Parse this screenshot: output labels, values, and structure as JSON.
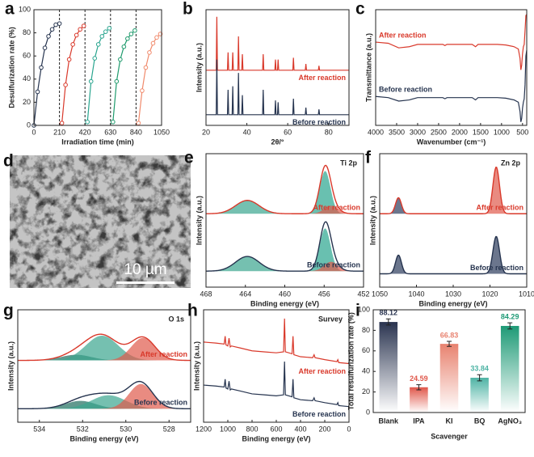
{
  "chart_data": [
    {
      "type": "line",
      "label": "a",
      "xlabel": "Irradiation time (min)",
      "ylabel": "Desulfurization rate (%)",
      "xlim": [
        0,
        1050
      ],
      "xticks": [
        0,
        210,
        420,
        630,
        840,
        1050
      ],
      "ylim": [
        0,
        100
      ],
      "yticks": [
        0,
        20,
        40,
        60,
        80,
        100
      ],
      "markers": true,
      "dividers": [
        210,
        420,
        630,
        840
      ],
      "series": [
        {
          "color": "#26344f",
          "x": [
            0,
            30,
            60,
            90,
            120,
            150,
            180,
            210
          ],
          "values": [
            0,
            29,
            50,
            67,
            77,
            83,
            87,
            88
          ]
        },
        {
          "color": "#d9392b",
          "x": [
            230,
            260,
            290,
            320,
            350,
            380,
            410
          ],
          "values": [
            2,
            35,
            57,
            70,
            78,
            83,
            86
          ]
        },
        {
          "color": "#2aa58f",
          "x": [
            440,
            470,
            500,
            530,
            560,
            590,
            620
          ],
          "values": [
            3,
            38,
            58,
            70,
            77,
            81,
            84
          ]
        },
        {
          "color": "#1e9a6c",
          "x": [
            650,
            680,
            710,
            740,
            770,
            800,
            830
          ],
          "values": [
            3,
            38,
            57,
            68,
            75,
            79,
            82
          ]
        },
        {
          "color": "#f08a6c",
          "x": [
            860,
            890,
            920,
            950,
            980,
            1010,
            1040
          ],
          "values": [
            2,
            30,
            50,
            63,
            71,
            76,
            79
          ]
        }
      ]
    },
    {
      "type": "line",
      "label": "b",
      "xlabel": "2θ/°",
      "ylabel": "Intensity (a.u.)",
      "series_label": "right-below",
      "xlim": [
        20,
        90
      ],
      "xticks": [
        20,
        40,
        60,
        80
      ],
      "ylim": [
        0,
        130
      ],
      "series": [
        {
          "name": "After reaction",
          "color": "#d9392b",
          "x": [
            20,
            25.0,
            25.3,
            25.6,
            30.5,
            30.8,
            31.1,
            32.8,
            33.1,
            33.4,
            35.6,
            35.9,
            36.2,
            37.5,
            37.8,
            38.1,
            47.7,
            48.0,
            48.3,
            53.7,
            54.0,
            54.3,
            55.0,
            55.3,
            55.6,
            62.5,
            62.8,
            63.1,
            68.6,
            68.9,
            69.2,
            75.0,
            75.3,
            75.6,
            90
          ],
          "values": [
            62,
            62,
            122,
            62,
            62,
            82,
            62,
            62,
            82,
            62,
            62,
            100,
            62,
            62,
            80,
            62,
            62,
            80,
            62,
            62,
            74,
            62,
            62,
            74,
            62,
            62,
            76,
            62,
            62,
            69,
            62,
            62,
            67,
            62,
            62
          ]
        },
        {
          "name": "Before reaction",
          "color": "#26344f",
          "x": [
            20,
            25.0,
            25.3,
            25.6,
            30.5,
            30.8,
            31.1,
            32.8,
            33.1,
            33.4,
            35.6,
            35.9,
            36.2,
            37.5,
            37.8,
            38.1,
            47.7,
            48.0,
            48.3,
            53.7,
            54.0,
            54.3,
            55.0,
            55.3,
            55.6,
            62.5,
            62.8,
            63.1,
            68.6,
            68.9,
            69.2,
            75.0,
            75.3,
            75.6,
            90
          ],
          "values": [
            12,
            12,
            74,
            12,
            12,
            40,
            12,
            12,
            44,
            12,
            12,
            59,
            12,
            12,
            34,
            12,
            12,
            40,
            12,
            12,
            28,
            12,
            12,
            26,
            12,
            12,
            30,
            12,
            12,
            20,
            12,
            12,
            18,
            12,
            12
          ]
        }
      ]
    },
    {
      "type": "line",
      "label": "c",
      "xlabel": "Wavenumber (cm⁻¹)",
      "ylabel": "Transmittance (a.u.)",
      "series_label": "left-above",
      "xlim": [
        4000,
        400
      ],
      "xticks": [
        4000,
        3500,
        3000,
        2500,
        2000,
        1500,
        1000,
        500
      ],
      "ylim": [
        0,
        100
      ],
      "series": [
        {
          "name": "After reaction",
          "color": "#d9392b",
          "x": [
            4000,
            3700,
            3450,
            3200,
            3000,
            2400,
            2350,
            2300,
            1700,
            1620,
            1560,
            1400,
            1100,
            900,
            700,
            600,
            560,
            540,
            520,
            500,
            480,
            460,
            440,
            420,
            400
          ],
          "values": [
            72,
            71,
            67,
            68,
            70,
            70,
            69,
            70,
            70,
            68,
            70,
            70,
            70,
            69.5,
            68,
            66,
            58,
            48,
            52,
            62,
            68,
            70,
            82,
            95,
            96
          ]
        },
        {
          "name": "Before reaction",
          "color": "#26344f",
          "x": [
            4000,
            3700,
            3450,
            3200,
            3000,
            2400,
            2350,
            2300,
            1700,
            1620,
            1560,
            1400,
            1100,
            900,
            700,
            600,
            560,
            540,
            520,
            500,
            480,
            460,
            440,
            420,
            400
          ],
          "values": [
            25,
            24,
            21,
            22,
            24,
            24,
            23,
            24,
            24,
            22,
            24,
            24,
            24,
            23.5,
            22,
            20,
            12,
            3,
            6,
            15,
            20,
            23,
            35,
            60,
            65
          ]
        }
      ]
    },
    {
      "type": "image",
      "label": "d",
      "scale_bar": "10 µm"
    },
    {
      "type": "xps",
      "label": "e",
      "note": "Ti 2p",
      "xlabel": "Binding energy (eV)",
      "ylabel": "Intensity (a.u.)",
      "xlim": [
        468,
        452
      ],
      "xticks": [
        468,
        464,
        460,
        456,
        452
      ],
      "ylim": [
        0,
        100
      ],
      "spectra": [
        {
          "name": "After reaction",
          "color": "#d9392b",
          "baseline": 55,
          "peaks": [
            {
              "center": 463.8,
              "height": 10,
              "width": 1.2,
              "color": "#3aa58f"
            },
            {
              "center": 455.9,
              "height": 32,
              "width": 0.55,
              "color": "#2aa58f"
            },
            {
              "center": 455.3,
              "height": 6,
              "width": 0.7,
              "color": "#e05a4b"
            }
          ]
        },
        {
          "name": "Before reaction",
          "color": "#26344f",
          "baseline": 12,
          "peaks": [
            {
              "center": 463.8,
              "height": 11,
              "width": 1.2,
              "color": "#3aa58f"
            },
            {
              "center": 455.9,
              "height": 32,
              "width": 0.55,
              "color": "#2aa58f"
            },
            {
              "center": 455.3,
              "height": 7,
              "width": 0.7,
              "color": "#e05a4b"
            }
          ]
        }
      ]
    },
    {
      "type": "xps",
      "label": "f",
      "note": "Zn 2p",
      "xlabel": "Binding energy (eV)",
      "ylabel": "Intensity (a.u.)",
      "xlim": [
        1050,
        1010
      ],
      "xticks": [
        1050,
        1040,
        1030,
        1020,
        1010
      ],
      "ylim": [
        0,
        100
      ],
      "spectra": [
        {
          "name": "After reaction",
          "color": "#d9392b",
          "baseline": 55,
          "peaks": [
            {
              "center": 1044.9,
              "height": 12,
              "width": 0.8,
              "color": "#2c3c5c"
            },
            {
              "center": 1018.3,
              "height": 35,
              "width": 0.9,
              "color": "#e05a4b"
            }
          ]
        },
        {
          "name": "Before reaction",
          "color": "#26344f",
          "baseline": 10,
          "peaks": [
            {
              "center": 1044.9,
              "height": 14,
              "width": 0.8,
              "color": "#2c3c5c"
            },
            {
              "center": 1018.3,
              "height": 28,
              "width": 0.9,
              "color": "#2c3c5c"
            }
          ]
        }
      ]
    },
    {
      "type": "xps",
      "label": "g",
      "note": "O 1s",
      "xlabel": "Binding energy (eV)",
      "ylabel": "Intensity (a.u.)",
      "xlim": [
        535,
        527
      ],
      "xticks": [
        534,
        532,
        530,
        528
      ],
      "ylim": [
        0,
        100
      ],
      "spectra": [
        {
          "name": "After reaction",
          "color": "#d9392b",
          "baseline": 55,
          "peaks": [
            {
              "center": 532.3,
              "height": 5,
              "width": 0.7,
              "color": "#1f6e5e"
            },
            {
              "center": 531.1,
              "height": 22,
              "width": 0.75,
              "color": "#3aa58f"
            },
            {
              "center": 529.2,
              "height": 20,
              "width": 0.55,
              "color": "#e05a4b"
            }
          ]
        },
        {
          "name": "Before reaction",
          "color": "#26344f",
          "baseline": 12,
          "peaks": [
            {
              "center": 532.1,
              "height": 7,
              "width": 0.7,
              "color": "#1f6e5e"
            },
            {
              "center": 530.8,
              "height": 12,
              "width": 0.8,
              "color": "#3aa58f"
            },
            {
              "center": 529.3,
              "height": 22,
              "width": 0.55,
              "color": "#e05a4b"
            }
          ]
        }
      ]
    },
    {
      "type": "line",
      "label": "h",
      "note": "Survey",
      "xlabel": "Binding energy (eV)",
      "ylabel": "Intensity (a.u.)",
      "series_label": "right-below",
      "xlim": [
        1200,
        0
      ],
      "xticks": [
        1200,
        1000,
        800,
        600,
        400,
        200,
        0
      ],
      "ylim": [
        0,
        115
      ],
      "series": [
        {
          "name": "After reaction",
          "color": "#d9392b",
          "x": [
            1200,
            1100,
            1030,
            1022,
            1015,
            1000,
            990,
            980,
            970,
            900,
            800,
            700,
            600,
            540,
            532,
            525,
            470,
            462,
            455,
            400,
            300,
            288,
            280,
            200,
            100,
            92,
            85,
            0
          ],
          "values": [
            82,
            81,
            80,
            88,
            79,
            78,
            86,
            77,
            78,
            76,
            73,
            72,
            71,
            72,
            106,
            72,
            70,
            88,
            69,
            67,
            66,
            69,
            66,
            64,
            62,
            64,
            61,
            60
          ]
        },
        {
          "name": "Before reaction",
          "color": "#26344f",
          "x": [
            1200,
            1100,
            1030,
            1022,
            1015,
            1000,
            990,
            980,
            970,
            900,
            800,
            700,
            600,
            540,
            532,
            525,
            470,
            462,
            455,
            400,
            300,
            288,
            280,
            200,
            100,
            92,
            85,
            0
          ],
          "values": [
            38,
            37,
            36,
            44,
            35,
            34,
            42,
            33,
            34,
            32,
            29,
            28,
            27,
            28,
            62,
            28,
            26,
            44,
            25,
            23,
            22,
            25,
            22,
            20,
            18,
            20,
            17,
            16
          ]
        }
      ]
    },
    {
      "type": "bar",
      "label": "i",
      "xlabel": "Scavenger",
      "ylabel": "Total resulfurization rate (%)",
      "ylim": [
        0,
        100
      ],
      "yticks": [
        0,
        20,
        40,
        60,
        80,
        100
      ],
      "categories": [
        "Blank",
        "IPA",
        "KI",
        "BQ",
        "AgNO₃"
      ],
      "values": [
        88.12,
        24.59,
        66.83,
        33.84,
        84.29
      ],
      "errors": [
        3,
        2.5,
        2.5,
        3,
        3
      ],
      "colors": [
        "#2a3450",
        "#e0574a",
        "#e8826f",
        "#4db3a4",
        "#1e9a76"
      ]
    }
  ]
}
